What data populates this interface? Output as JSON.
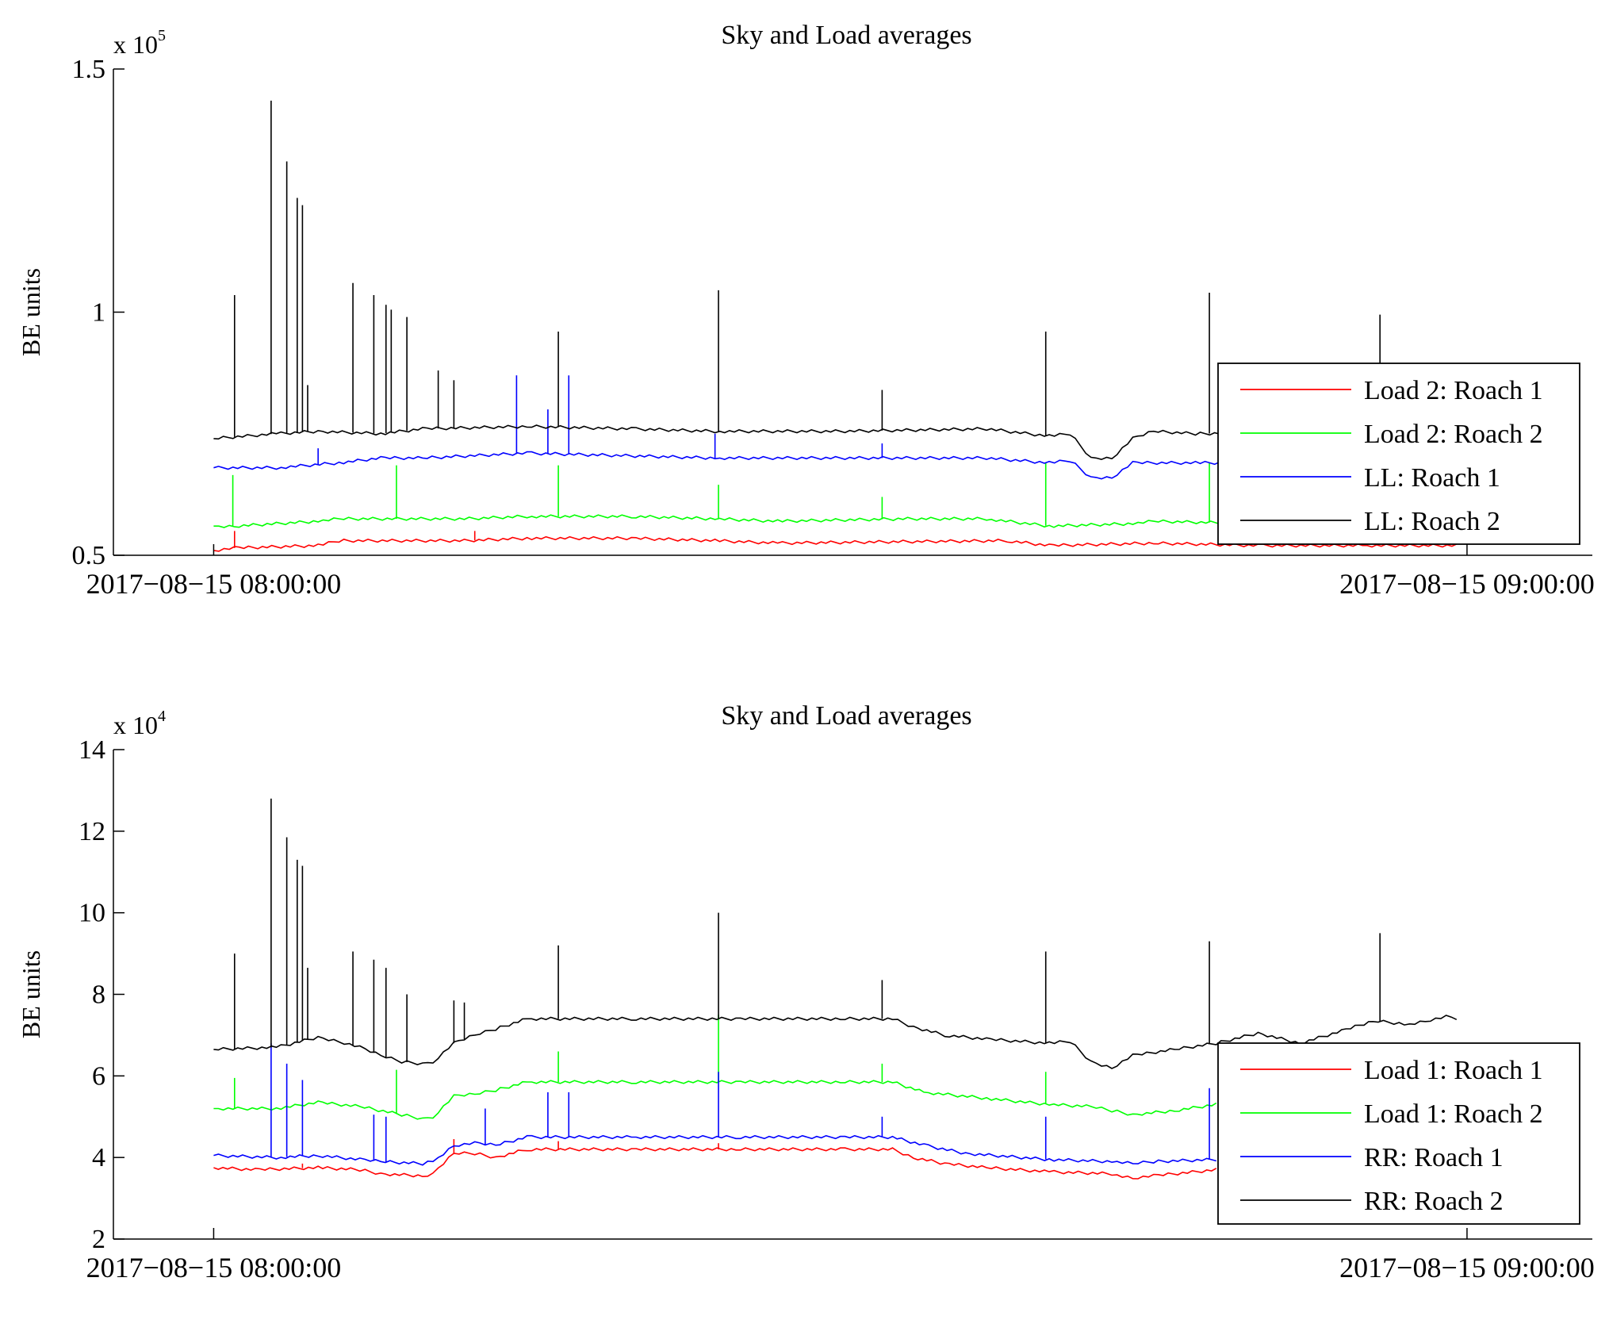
{
  "chart_data": [
    {
      "type": "line",
      "title": "Sky and Load averages",
      "ylabel": "BE units",
      "xlabel": "",
      "y_multiplier": "x 10",
      "y_exponent": "5",
      "ylim": [
        0.5,
        1.5
      ],
      "yticks": [
        0.5,
        1,
        1.5
      ],
      "ytick_labels": [
        "0.5",
        "1",
        "1.5"
      ],
      "xlim": [
        "2017-08-15 07:55:12",
        "2017-08-15 09:06:00"
      ],
      "xticks": [
        "2017-08-15 08:00:00",
        "2017-08-15 09:00:00"
      ],
      "xtick_labels": [
        "2017−08−15 08:00:00",
        "2017−08−15 09:00:00"
      ],
      "grid": false,
      "legend": "right",
      "series": [
        {
          "name": "Load 2: Roach 1",
          "color": "#ff0000",
          "x": [
            "08:00:00",
            "08:01:00",
            "08:05:00",
            "08:06:00",
            "08:12:00",
            "08:15:00",
            "08:20:00",
            "08:24:00",
            "08:27:00",
            "08:33:00",
            "08:38:00",
            "08:40:00",
            "08:45:00",
            "08:50:00",
            "08:55:00",
            "08:59:30"
          ],
          "y": [
            0.51,
            0.515,
            0.52,
            0.53,
            0.53,
            0.535,
            0.535,
            0.53,
            0.525,
            0.528,
            0.53,
            0.52,
            0.525,
            0.52,
            0.52,
            0.52
          ],
          "spikes": [
            {
              "x": "08:01:00",
              "y": 0.55
            },
            {
              "x": "08:07:30",
              "y": 0.53
            },
            {
              "x": "08:12:30",
              "y": 0.55
            }
          ]
        },
        {
          "name": "Load 2: Roach 2",
          "color": "#00ff00",
          "x": [
            "08:00:00",
            "08:01:00",
            "08:05:00",
            "08:06:00",
            "08:12:00",
            "08:15:00",
            "08:20:00",
            "08:24:00",
            "08:27:00",
            "08:33:00",
            "08:37:00",
            "08:40:00",
            "08:44:00",
            "08:45:00",
            "08:50:00",
            "08:55:00"
          ],
          "y": [
            0.56,
            0.56,
            0.57,
            0.575,
            0.575,
            0.58,
            0.58,
            0.575,
            0.57,
            0.575,
            0.575,
            0.56,
            0.565,
            0.57,
            0.565,
            0.565
          ],
          "spikes": [
            {
              "x": "08:00:55",
              "y": 0.665
            },
            {
              "x": "08:08:45",
              "y": 0.685
            },
            {
              "x": "08:16:30",
              "y": 0.685
            },
            {
              "x": "08:24:10",
              "y": 0.645
            },
            {
              "x": "08:32:00",
              "y": 0.62
            },
            {
              "x": "08:39:50",
              "y": 0.69
            },
            {
              "x": "08:47:40",
              "y": 0.69
            }
          ]
        },
        {
          "name": "LL: Roach 1",
          "color": "#0000ff",
          "x": [
            "08:00:00",
            "08:03:00",
            "08:06:00",
            "08:08:00",
            "08:10:00",
            "08:15:00",
            "08:24:00",
            "08:30:00",
            "08:37:00",
            "08:40:00",
            "08:41:00",
            "08:42:00",
            "08:43:00",
            "08:44:00",
            "08:47:00",
            "08:55:00"
          ],
          "y": [
            0.68,
            0.68,
            0.69,
            0.7,
            0.7,
            0.71,
            0.7,
            0.7,
            0.7,
            0.69,
            0.695,
            0.66,
            0.66,
            0.69,
            0.69,
            0.69
          ],
          "spikes": [
            {
              "x": "08:05:00",
              "y": 0.72
            },
            {
              "x": "08:14:30",
              "y": 0.87
            },
            {
              "x": "08:17:00",
              "y": 0.87
            },
            {
              "x": "08:16:00",
              "y": 0.8
            },
            {
              "x": "08:24:00",
              "y": 0.75
            },
            {
              "x": "08:32:00",
              "y": 0.73
            }
          ]
        },
        {
          "name": "LL: Roach 2",
          "color": "#000000",
          "x": [
            "08:00:00",
            "08:03:00",
            "08:05:00",
            "08:08:00",
            "08:10:00",
            "08:15:00",
            "08:20:00",
            "08:24:00",
            "08:30:00",
            "08:37:00",
            "08:40:00",
            "08:41:00",
            "08:42:00",
            "08:43:00",
            "08:44:00",
            "08:45:00",
            "08:47:00",
            "08:55:00"
          ],
          "y": [
            0.74,
            0.75,
            0.755,
            0.75,
            0.76,
            0.765,
            0.76,
            0.755,
            0.755,
            0.76,
            0.745,
            0.75,
            0.7,
            0.7,
            0.74,
            0.755,
            0.75,
            0.755
          ],
          "spikes": [
            {
              "x": "08:01:00",
              "y": 1.035
            },
            {
              "x": "08:02:45",
              "y": 1.435
            },
            {
              "x": "08:03:30",
              "y": 1.31
            },
            {
              "x": "08:04:00",
              "y": 1.235
            },
            {
              "x": "08:04:15",
              "y": 1.22
            },
            {
              "x": "08:04:30",
              "y": 0.85
            },
            {
              "x": "08:06:40",
              "y": 1.06
            },
            {
              "x": "08:07:40",
              "y": 1.035
            },
            {
              "x": "08:08:15",
              "y": 1.015
            },
            {
              "x": "08:08:30",
              "y": 1.005
            },
            {
              "x": "08:09:15",
              "y": 0.99
            },
            {
              "x": "08:10:45",
              "y": 0.88
            },
            {
              "x": "08:11:30",
              "y": 0.86
            },
            {
              "x": "08:16:30",
              "y": 0.96
            },
            {
              "x": "08:24:10",
              "y": 1.045
            },
            {
              "x": "08:32:00",
              "y": 0.84
            },
            {
              "x": "08:39:50",
              "y": 0.96
            },
            {
              "x": "08:47:40",
              "y": 1.04
            },
            {
              "x": "08:55:50",
              "y": 0.995
            }
          ]
        }
      ]
    },
    {
      "type": "line",
      "title": "Sky and Load averages",
      "ylabel": "BE units",
      "xlabel": "",
      "y_multiplier": "x 10",
      "y_exponent": "4",
      "ylim": [
        2,
        14
      ],
      "yticks": [
        2,
        4,
        6,
        8,
        10,
        12,
        14
      ],
      "ytick_labels": [
        "2",
        "4",
        "6",
        "8",
        "10",
        "12",
        "14"
      ],
      "xlim": [
        "2017-08-15 07:55:12",
        "2017-08-15 09:06:00"
      ],
      "xticks": [
        "2017-08-15 08:00:00",
        "2017-08-15 09:00:00"
      ],
      "xtick_labels": [
        "2017−08−15 08:00:00",
        "2017−08−15 09:00:00"
      ],
      "grid": false,
      "legend": "right",
      "series": [
        {
          "name": "Load 1: Roach 1",
          "color": "#ff0000",
          "x": [
            "08:00:00",
            "08:02:00",
            "08:05:00",
            "08:07:00",
            "08:08:00",
            "08:10:00",
            "08:10:30",
            "08:11:30",
            "08:12:30",
            "08:13:30",
            "08:15:00",
            "08:20:00",
            "08:25:00",
            "08:30:00",
            "08:32:30",
            "08:33:30",
            "08:35:00",
            "08:37:00",
            "08:40:00",
            "08:43:00",
            "08:44:00",
            "08:45:00",
            "08:48:00"
          ],
          "y": [
            3.75,
            3.7,
            3.75,
            3.7,
            3.6,
            3.55,
            3.6,
            4.1,
            4.1,
            4.0,
            4.2,
            4.2,
            4.2,
            4.2,
            4.2,
            4.0,
            3.85,
            3.75,
            3.65,
            3.6,
            3.5,
            3.55,
            3.7
          ],
          "spikes": [
            {
              "x": "08:04:15",
              "y": 3.85
            },
            {
              "x": "08:11:30",
              "y": 4.45
            },
            {
              "x": "08:16:30",
              "y": 4.4
            },
            {
              "x": "08:24:10",
              "y": 4.35
            }
          ]
        },
        {
          "name": "Load 1: Roach 2",
          "color": "#00ff00",
          "x": [
            "08:00:00",
            "08:03:00",
            "08:05:00",
            "08:07:00",
            "08:09:00",
            "08:10:00",
            "08:10:30",
            "08:11:30",
            "08:12:30",
            "08:13:30",
            "08:15:00",
            "08:20:00",
            "08:25:00",
            "08:30:00",
            "08:32:30",
            "08:34:00",
            "08:37:00",
            "08:40:00",
            "08:42:00",
            "08:43:00",
            "08:44:00",
            "08:46:00",
            "08:48:00"
          ],
          "y": [
            5.2,
            5.2,
            5.35,
            5.25,
            5.05,
            4.95,
            5.0,
            5.5,
            5.55,
            5.65,
            5.85,
            5.85,
            5.85,
            5.85,
            5.85,
            5.6,
            5.45,
            5.3,
            5.25,
            5.15,
            5.05,
            5.15,
            5.3
          ],
          "spikes": [
            {
              "x": "08:01:00",
              "y": 5.95
            },
            {
              "x": "08:08:45",
              "y": 6.15
            },
            {
              "x": "08:16:30",
              "y": 6.6
            },
            {
              "x": "08:24:10",
              "y": 7.5
            },
            {
              "x": "08:32:00",
              "y": 6.3
            },
            {
              "x": "08:39:50",
              "y": 6.1
            }
          ]
        },
        {
          "name": "RR: Roach 1",
          "color": "#0000ff",
          "x": [
            "08:00:00",
            "08:03:00",
            "08:05:00",
            "08:07:00",
            "08:08:00",
            "08:10:00",
            "08:10:30",
            "08:11:30",
            "08:12:30",
            "08:13:30",
            "08:15:00",
            "08:20:00",
            "08:25:00",
            "08:30:00",
            "08:32:30",
            "08:34:00",
            "08:36:00",
            "08:40:00",
            "08:43:00",
            "08:44:00",
            "08:45:00",
            "08:48:00"
          ],
          "y": [
            4.05,
            4.0,
            4.05,
            3.95,
            3.9,
            3.85,
            3.9,
            4.3,
            4.35,
            4.3,
            4.5,
            4.5,
            4.5,
            4.5,
            4.5,
            4.3,
            4.1,
            3.95,
            3.9,
            3.85,
            3.9,
            3.95
          ],
          "spikes": [
            {
              "x": "08:02:45",
              "y": 6.8
            },
            {
              "x": "08:03:30",
              "y": 6.3
            },
            {
              "x": "08:04:15",
              "y": 5.9
            },
            {
              "x": "08:07:40",
              "y": 5.05
            },
            {
              "x": "08:08:15",
              "y": 5.0
            },
            {
              "x": "08:13:00",
              "y": 5.2
            },
            {
              "x": "08:16:00",
              "y": 5.6
            },
            {
              "x": "08:17:00",
              "y": 5.6
            },
            {
              "x": "08:24:10",
              "y": 6.1
            },
            {
              "x": "08:32:00",
              "y": 5.0
            },
            {
              "x": "08:39:50",
              "y": 5.0
            },
            {
              "x": "08:47:40",
              "y": 5.7
            }
          ]
        },
        {
          "name": "RR: Roach 2",
          "color": "#000000",
          "x": [
            "08:00:00",
            "08:03:00",
            "08:05:00",
            "08:06:00",
            "08:07:00",
            "08:08:00",
            "08:09:00",
            "08:10:00",
            "08:10:30",
            "08:11:30",
            "08:12:30",
            "08:13:30",
            "08:15:00",
            "08:20:00",
            "08:25:00",
            "08:30:00",
            "08:32:30",
            "08:33:30",
            "08:35:00",
            "08:37:00",
            "08:40:00",
            "08:41:00",
            "08:42:00",
            "08:43:00",
            "08:44:00",
            "08:46:00",
            "08:48:00",
            "08:50:00",
            "08:52:00",
            "08:54:00",
            "08:55:30",
            "08:56:30",
            "08:57:00",
            "08:58:00",
            "08:59:00",
            "08:59:30"
          ],
          "y": [
            6.65,
            6.7,
            6.95,
            6.85,
            6.7,
            6.5,
            6.35,
            6.3,
            6.35,
            6.8,
            7.0,
            7.15,
            7.4,
            7.4,
            7.4,
            7.4,
            7.4,
            7.2,
            7.0,
            6.9,
            6.8,
            6.85,
            6.35,
            6.2,
            6.5,
            6.65,
            6.8,
            7.05,
            6.8,
            7.1,
            7.35,
            7.3,
            7.25,
            7.35,
            7.45,
            7.4
          ],
          "spikes": [
            {
              "x": "08:01:00",
              "y": 9.0
            },
            {
              "x": "08:02:45",
              "y": 12.8
            },
            {
              "x": "08:03:30",
              "y": 11.85
            },
            {
              "x": "08:04:00",
              "y": 11.3
            },
            {
              "x": "08:04:15",
              "y": 11.15
            },
            {
              "x": "08:04:30",
              "y": 8.65
            },
            {
              "x": "08:06:40",
              "y": 9.05
            },
            {
              "x": "08:07:40",
              "y": 8.85
            },
            {
              "x": "08:08:15",
              "y": 8.65
            },
            {
              "x": "08:09:15",
              "y": 8.0
            },
            {
              "x": "08:11:30",
              "y": 7.85
            },
            {
              "x": "08:12:00",
              "y": 7.8
            },
            {
              "x": "08:16:30",
              "y": 9.2
            },
            {
              "x": "08:24:10",
              "y": 10.0
            },
            {
              "x": "08:32:00",
              "y": 8.35
            },
            {
              "x": "08:39:50",
              "y": 9.05
            },
            {
              "x": "08:47:40",
              "y": 9.3
            },
            {
              "x": "08:55:50",
              "y": 9.5
            }
          ]
        }
      ]
    }
  ]
}
